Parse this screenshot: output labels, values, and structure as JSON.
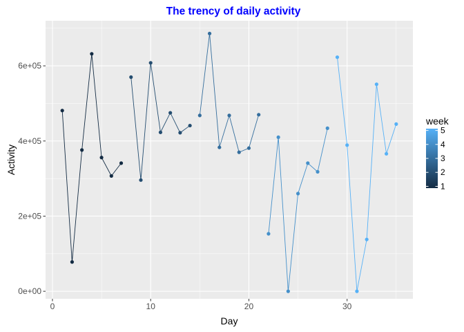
{
  "chart_data": {
    "type": "line",
    "title": "The trency of daily activity",
    "xlabel": "Day",
    "ylabel": "Activity",
    "xlim": [
      -0.7,
      36.7
    ],
    "ylim": [
      -20000,
      720000
    ],
    "x_ticks": [
      0,
      10,
      20,
      30
    ],
    "x_tick_labels": [
      "0",
      "10",
      "20",
      "30"
    ],
    "y_ticks": [
      0,
      200000,
      400000,
      600000
    ],
    "y_tick_labels": [
      "0e+00",
      "2e+05",
      "4e+05",
      "6e+05"
    ],
    "grid": true,
    "legend": {
      "title": "week",
      "placement": "right",
      "type": "colorbar",
      "range": [
        1,
        5
      ],
      "labels": [
        "1",
        "2",
        "3",
        "4",
        "5"
      ],
      "color_low": "#132b43",
      "color_high": "#56b1f7"
    },
    "colors": {
      "panel_background": "#ebebeb",
      "grid_major": "#ffffff",
      "title": "#0000ff"
    },
    "series": [
      {
        "week": 1,
        "points": [
          [
            1,
            481000
          ],
          [
            2,
            78000
          ],
          [
            3,
            376000
          ],
          [
            4,
            632000
          ],
          [
            5,
            356000
          ],
          [
            6,
            307000
          ],
          [
            7,
            341000
          ]
        ]
      },
      {
        "week": 2,
        "points": [
          [
            8,
            570000
          ],
          [
            9,
            296000
          ],
          [
            10,
            608000
          ],
          [
            11,
            423000
          ],
          [
            12,
            475000
          ],
          [
            13,
            422000
          ],
          [
            14,
            441000
          ]
        ]
      },
      {
        "week": 3,
        "points": [
          [
            15,
            468000
          ],
          [
            16,
            686000
          ],
          [
            17,
            383000
          ],
          [
            18,
            468000
          ],
          [
            19,
            370000
          ],
          [
            20,
            381000
          ],
          [
            21,
            470000
          ]
        ]
      },
      {
        "week": 4,
        "points": [
          [
            22,
            153000
          ],
          [
            23,
            410000
          ],
          [
            24,
            0
          ],
          [
            25,
            260000
          ],
          [
            26,
            341000
          ],
          [
            27,
            318000
          ],
          [
            28,
            434000
          ]
        ]
      },
      {
        "week": 5,
        "points": [
          [
            29,
            623000
          ],
          [
            30,
            389000
          ],
          [
            31,
            0
          ],
          [
            32,
            138000
          ],
          [
            33,
            551000
          ],
          [
            34,
            366000
          ],
          [
            35,
            445000
          ]
        ]
      }
    ]
  }
}
